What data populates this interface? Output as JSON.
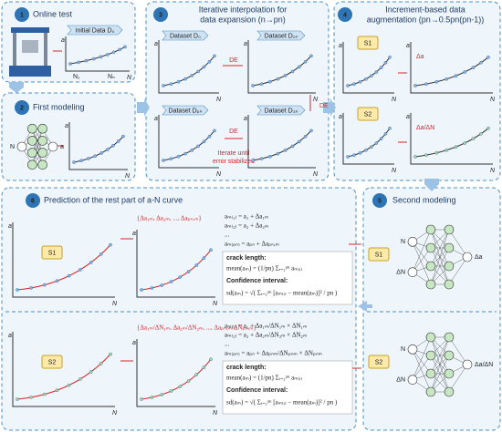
{
  "panel1": {
    "number": "1",
    "title": "Online test",
    "data_label": "Initial Data D₀",
    "ticks": [
      "N₁",
      "Nₙ"
    ]
  },
  "panel2": {
    "number": "2",
    "title": "First modeling",
    "input": "N",
    "output": "a"
  },
  "panel3": {
    "number": "3",
    "title_lines": [
      "Iterative interpolation for",
      "data expansion (n→pn)"
    ],
    "datasets": [
      "Dataset D₀",
      "Dataset D₂ₙ",
      "Dataset Dₚₙ",
      "Dataset D₃ₙ"
    ],
    "arrow_label": "DE",
    "note_lines": [
      "Iterate until",
      "error stabilized"
    ]
  },
  "panel4": {
    "number": "4",
    "title_lines": [
      "Increment-based data",
      "augmentation (pn→0.5pn(pn-1))"
    ],
    "groups": [
      {
        "label": "S1",
        "op": "Δa"
      },
      {
        "label": "S2",
        "op": "Δa/ΔN"
      }
    ]
  },
  "panel5": {
    "number": "5",
    "title": "Second modeling",
    "groups": [
      {
        "label": "S1",
        "inputs": [
          "N",
          "ΔN"
        ],
        "output": "Δa"
      },
      {
        "label": "S2",
        "inputs": [
          "N",
          "ΔN"
        ],
        "output": "Δa/ΔN"
      }
    ]
  },
  "panel6": {
    "number": "6",
    "title": "Prediction of the rest part of a-N curve",
    "groups": [
      {
        "label": "S1",
        "increments": "{Δa₁ₘ, Δa₂ₘ, ..., Δaₚₙ,ₘ}",
        "equations": [
          "aₘ₍₁₎ = a₁ + Δa₁ₘ",
          "aₘ₍₂₎ = a₂ + Δa₂ₘ",
          "...",
          "aₘ₍ₚₙ₎ = aₚₙ + Δaₚₙ,ₘ"
        ]
      },
      {
        "label": "S2",
        "increments": "{Δa₁ₘ/ΔN₁ₘ, Δa₂ₘ/ΔN₂ₘ, ..., Δaₚₙ,ₘ/ΔNₚₙ,ₘ}",
        "equations": [
          "aₘ₍₁₎ = a₁ + Δa₁ₘ/ΔN₁ₘ × ΔN₁ₘ",
          "aₘ₍₂₎ = a₂ + Δa₂ₘ/ΔN₂ₘ × ΔN₂ₘ",
          "...",
          "aₘ₍ₚₙ₎ = aₚₙ + Δaₚₙₘ/ΔNₚₙₘ × ΔNₚₙₘ"
        ]
      }
    ],
    "crack_length": "crack length:",
    "mean": "mean(aₘ) = (1/pn) Σᵢ₌₁ᵖⁿ aₘ₍ᵢ₎",
    "confidence": "Confidence interval:",
    "sd": "sd(aₘ) = √( Σᵢ₌₁ᵖⁿ [aₘ₍ᵢ₎ − mean(aₘ)]² / pn )"
  },
  "axis": {
    "y": "a",
    "x": "N"
  }
}
